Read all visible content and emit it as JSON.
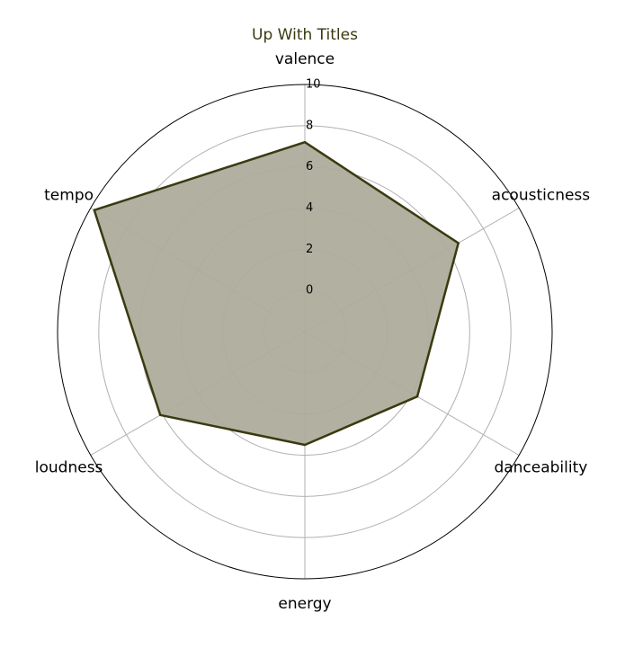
{
  "chart_data": {
    "type": "radar",
    "title": "Up With Titles",
    "categories": [
      "valence",
      "acousticness",
      "danceability",
      "energy",
      "loudness",
      "tempo"
    ],
    "series": [
      {
        "values": [
          7.2,
          6.6,
          4.3,
          3.5,
          6.1,
          9.8
        ]
      }
    ],
    "r_ticks": [
      "0",
      "2",
      "4",
      "6",
      "8",
      "10"
    ],
    "r_tick_values": [
      0,
      2,
      4,
      6,
      8,
      10
    ],
    "rlim": [
      -2,
      10
    ],
    "grid": true,
    "colors": {
      "line": "#3a3a10",
      "fill": "#aeac9c",
      "title": "#3a3a10",
      "grid": "#b0b0b0",
      "frame": "#000000"
    }
  }
}
